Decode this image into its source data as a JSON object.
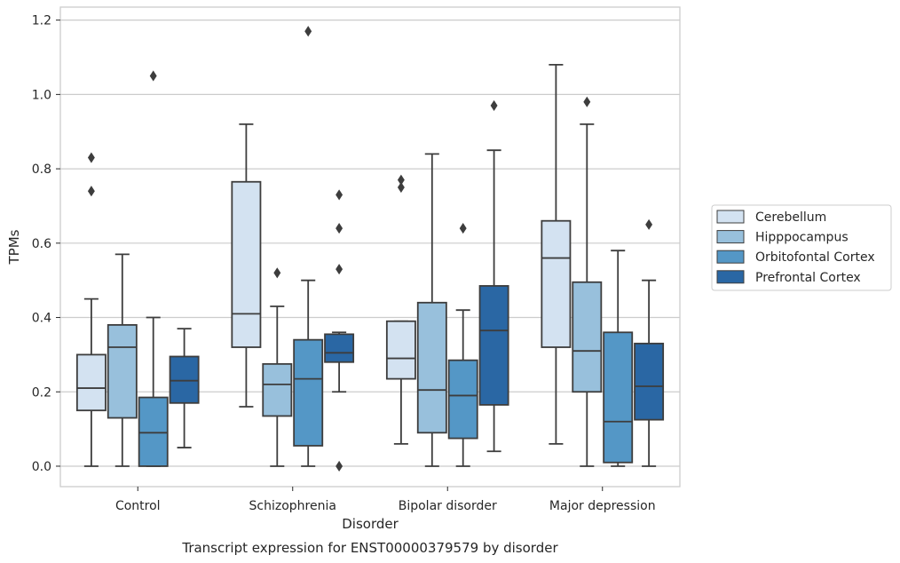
{
  "chart_data": {
    "type": "box",
    "title": "",
    "caption": "Transcript expression for ENST00000379579 by disorder",
    "xlabel": "Disorder",
    "ylabel": "TPMs",
    "ylim": [
      -0.055,
      1.235
    ],
    "yticks": [
      "0.0",
      "0.2",
      "0.4",
      "0.6",
      "0.8",
      "1.0",
      "1.2"
    ],
    "ytick_values": [
      0.0,
      0.2,
      0.4,
      0.6,
      0.8,
      1.0,
      1.2
    ],
    "grid": "horizontal",
    "legend_position": "right",
    "categories": [
      "Control",
      "Schizophrenia",
      "Bipolar disorder",
      "Major depression"
    ],
    "series": [
      {
        "name": "Cerebellum",
        "color": "#d3e2f1",
        "boxes": [
          {
            "whislo": 0.0,
            "q1": 0.15,
            "med": 0.21,
            "q3": 0.3,
            "whishi": 0.45,
            "fliers": [
              0.74,
              0.83
            ]
          },
          {
            "whislo": 0.16,
            "q1": 0.32,
            "med": 0.41,
            "q3": 0.765,
            "whishi": 0.92,
            "fliers": []
          },
          {
            "whislo": 0.06,
            "q1": 0.235,
            "med": 0.29,
            "q3": 0.39,
            "whishi": 0.39,
            "fliers": [
              0.75,
              0.77
            ]
          },
          {
            "whislo": 0.06,
            "q1": 0.32,
            "med": 0.56,
            "q3": 0.66,
            "whishi": 1.08,
            "fliers": []
          }
        ]
      },
      {
        "name": "Hipppocampus",
        "color": "#98c0dc",
        "boxes": [
          {
            "whislo": 0.0,
            "q1": 0.13,
            "med": 0.32,
            "q3": 0.38,
            "whishi": 0.57,
            "fliers": []
          },
          {
            "whislo": 0.0,
            "q1": 0.135,
            "med": 0.22,
            "q3": 0.275,
            "whishi": 0.43,
            "fliers": [
              0.52
            ]
          },
          {
            "whislo": 0.0,
            "q1": 0.09,
            "med": 0.205,
            "q3": 0.44,
            "whishi": 0.84,
            "fliers": []
          },
          {
            "whislo": 0.0,
            "q1": 0.2,
            "med": 0.31,
            "q3": 0.495,
            "whishi": 0.92,
            "fliers": [
              0.98
            ]
          }
        ]
      },
      {
        "name": "Orbitofontal Cortex",
        "color": "#5497c6",
        "boxes": [
          {
            "whislo": 0.0,
            "q1": 0.0,
            "med": 0.09,
            "q3": 0.185,
            "whishi": 0.4,
            "fliers": [
              1.05
            ]
          },
          {
            "whislo": 0.0,
            "q1": 0.055,
            "med": 0.235,
            "q3": 0.34,
            "whishi": 0.5,
            "fliers": [
              1.17
            ]
          },
          {
            "whislo": 0.0,
            "q1": 0.075,
            "med": 0.19,
            "q3": 0.285,
            "whishi": 0.42,
            "fliers": [
              0.64
            ]
          },
          {
            "whislo": 0.0,
            "q1": 0.01,
            "med": 0.12,
            "q3": 0.36,
            "whishi": 0.58,
            "fliers": []
          }
        ]
      },
      {
        "name": "Prefrontal Cortex",
        "color": "#2a67a4",
        "boxes": [
          {
            "whislo": 0.05,
            "q1": 0.17,
            "med": 0.23,
            "q3": 0.295,
            "whishi": 0.37,
            "fliers": []
          },
          {
            "whislo": 0.2,
            "q1": 0.28,
            "med": 0.305,
            "q3": 0.355,
            "whishi": 0.36,
            "fliers": [
              0.0,
              0.53,
              0.64,
              0.73
            ]
          },
          {
            "whislo": 0.04,
            "q1": 0.165,
            "med": 0.365,
            "q3": 0.485,
            "whishi": 0.85,
            "fliers": [
              0.97
            ]
          },
          {
            "whislo": 0.0,
            "q1": 0.125,
            "med": 0.215,
            "q3": 0.33,
            "whishi": 0.5,
            "fliers": [
              0.65
            ]
          }
        ]
      }
    ]
  }
}
